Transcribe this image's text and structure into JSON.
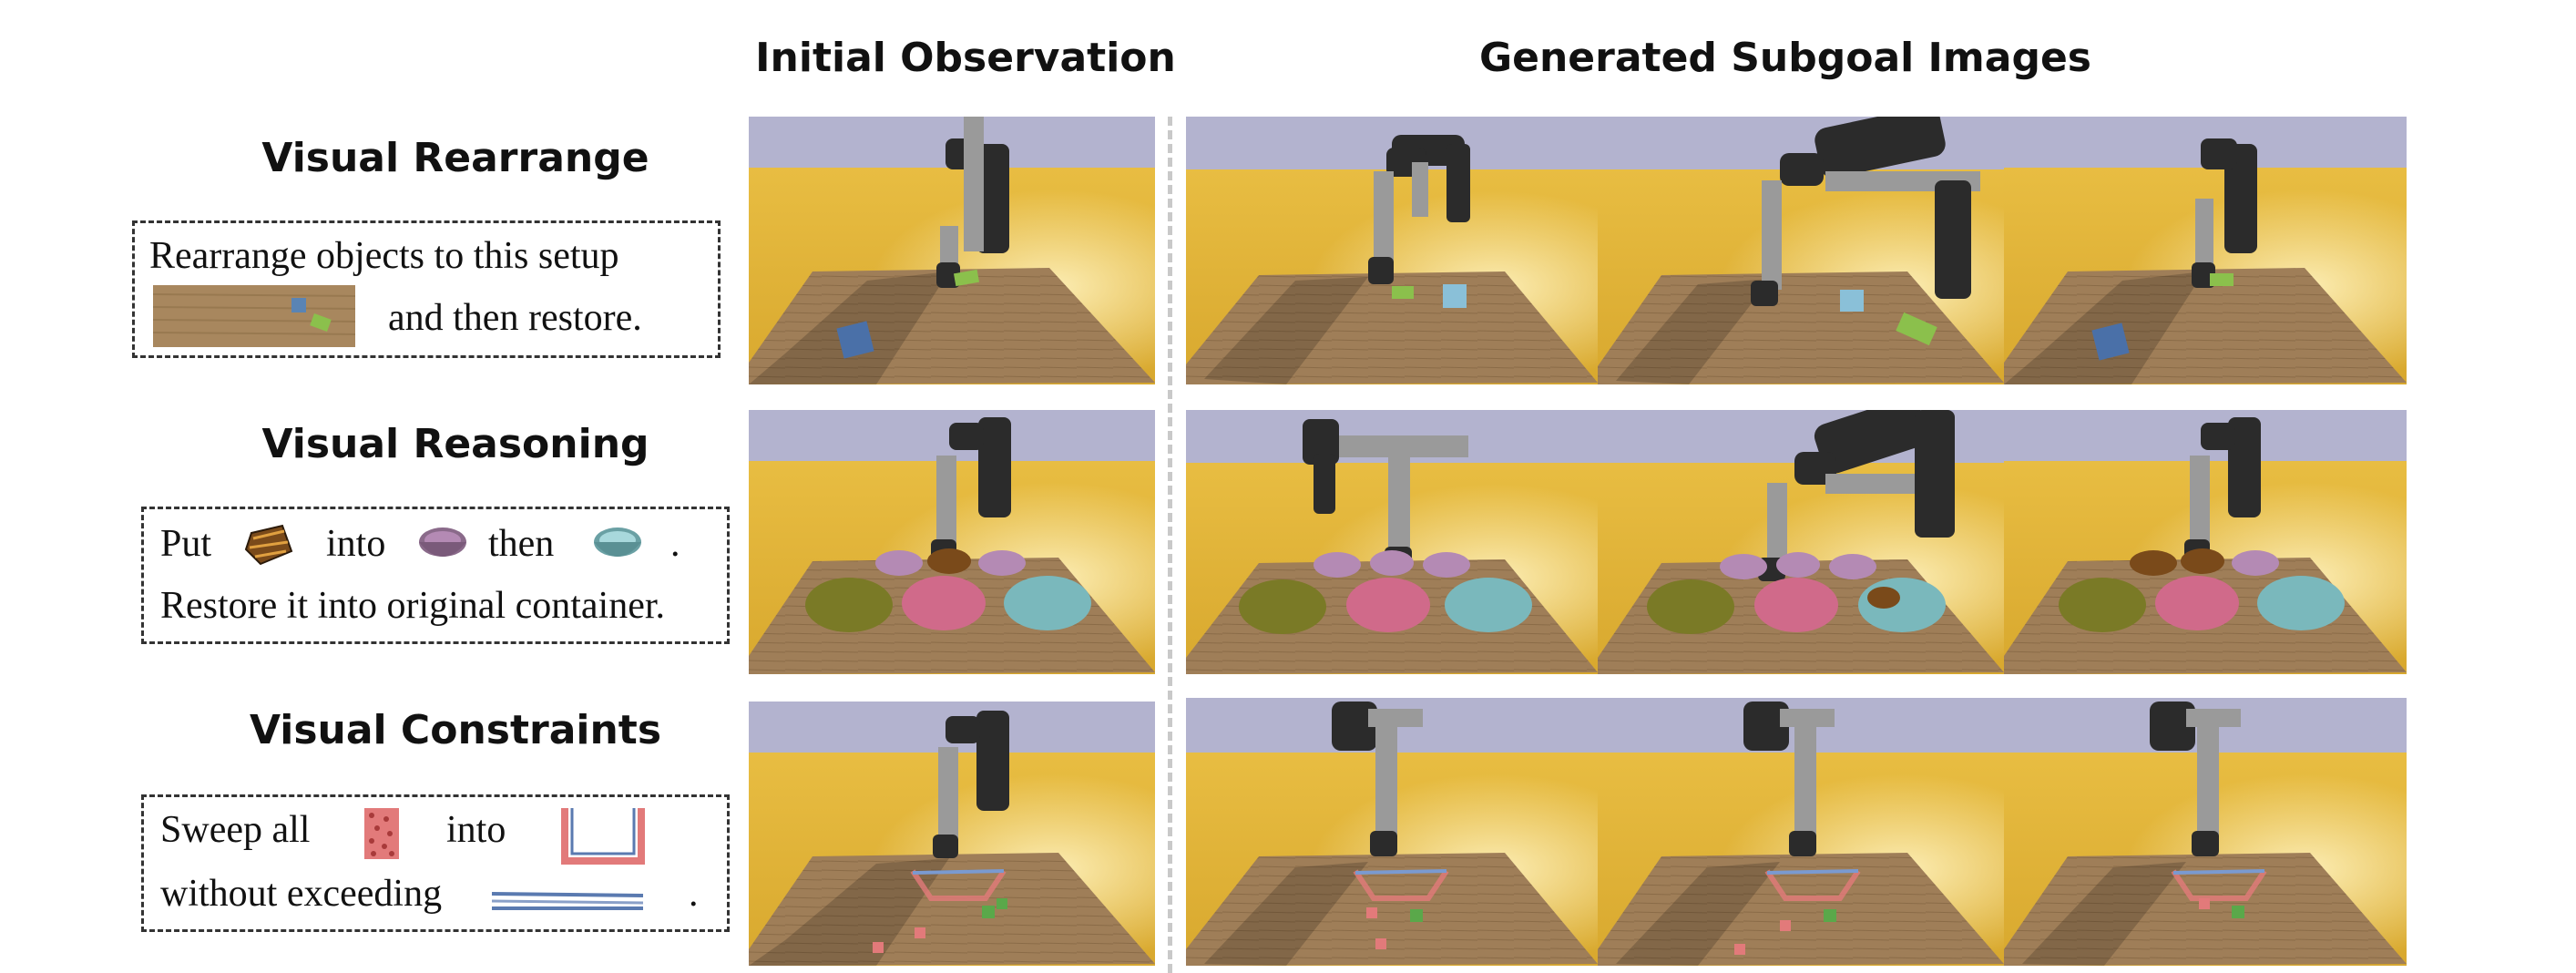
{
  "columns": {
    "initial": "Initial Observation",
    "generated": "Generated Subgoal Images"
  },
  "rows": [
    {
      "title": "Visual Rearrange",
      "line1": "Rearrange objects to this setup",
      "line2": "and then restore."
    },
    {
      "title": "Visual Reasoning",
      "line1_put": "Put",
      "line1_into": "into",
      "line1_then": "then",
      "line1_period": ".",
      "line2": "Restore it into original container."
    },
    {
      "title": "Visual Constraints",
      "line1_sweep": "Sweep all",
      "line1_into": "into",
      "line2": "without exceeding",
      "line2_period": "."
    }
  ],
  "colors": {
    "sky": "#b3b3cf",
    "wall": "#e2b53a",
    "table": "#9c7b55",
    "robot": "#2b2b2b",
    "robot_grey": "#9a9a9a"
  }
}
